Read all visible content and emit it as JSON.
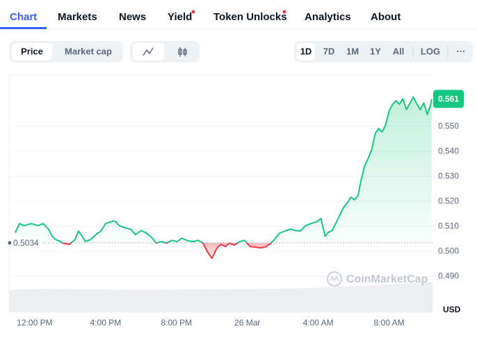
{
  "tabs": [
    "Chart",
    "Markets",
    "News",
    "Yield",
    "Token Unlocks",
    "Analytics",
    "About"
  ],
  "price_toggle": [
    "Price",
    "Market cap"
  ],
  "ranges": [
    "1D",
    "7D",
    "1M",
    "1Y",
    "All"
  ],
  "log": "LOG",
  "more": "···",
  "watermark": "CoinMarketCap",
  "chart_data": {
    "type": "line",
    "color": "#16c784",
    "negative_color": "#ea3943",
    "baseline": 0.5034,
    "current_price": 0.561,
    "y_label": "USD",
    "grid": true,
    "xlim": [
      -1.45,
      22.45
    ],
    "ylim": [
      0.4756,
      0.5706
    ],
    "xticks": [
      {
        "value": 0,
        "label": "12:00 PM"
      },
      {
        "value": 4,
        "label": "4:00 PM"
      },
      {
        "value": 8,
        "label": "8:00 PM"
      },
      {
        "value": 12,
        "label": "26 Mar"
      },
      {
        "value": 16,
        "label": "4:00 AM"
      },
      {
        "value": 20,
        "label": "8:00 AM"
      }
    ],
    "yticks": [
      {
        "value": 0.49,
        "label": "0.490"
      },
      {
        "value": 0.5,
        "label": "0.500"
      },
      {
        "value": 0.51,
        "label": "0.510"
      },
      {
        "value": 0.52,
        "label": "0.520"
      },
      {
        "value": 0.53,
        "label": "0.530"
      },
      {
        "value": 0.54,
        "label": "0.540"
      },
      {
        "value": 0.55,
        "label": "0.550"
      }
    ],
    "x": [
      -1.1,
      -0.86,
      -0.59,
      -0.2,
      0.2,
      0.47,
      0.78,
      0.98,
      1.18,
      1.37,
      1.57,
      1.96,
      2.27,
      2.47,
      2.67,
      2.86,
      3.14,
      3.45,
      3.73,
      4.0,
      4.24,
      4.51,
      4.78,
      5.1,
      5.41,
      5.69,
      6.0,
      6.27,
      6.59,
      6.86,
      7.14,
      7.45,
      7.76,
      8.04,
      8.31,
      8.63,
      8.94,
      9.22,
      9.49,
      9.73,
      10.0,
      10.27,
      10.51,
      10.78,
      10.98,
      11.25,
      11.57,
      11.84,
      12.16,
      12.43,
      12.75,
      13.02,
      13.25,
      13.53,
      13.8,
      14.12,
      14.43,
      14.71,
      14.98,
      15.29,
      15.57,
      15.88,
      16.16,
      16.39,
      16.55,
      16.78,
      17.06,
      17.25,
      17.45,
      17.65,
      17.84,
      18.04,
      18.24,
      18.43,
      18.63,
      18.82,
      19.02,
      19.22,
      19.41,
      19.61,
      19.8,
      20.0,
      20.2,
      20.39,
      20.59,
      20.78,
      20.98,
      21.18,
      21.37,
      21.57,
      21.76,
      21.96,
      22.16,
      22.35,
      22.4
    ],
    "values": [
      0.5075,
      0.5111,
      0.5103,
      0.5111,
      0.5103,
      0.5111,
      0.5089,
      0.5061,
      0.5047,
      0.5042,
      0.5033,
      0.5028,
      0.5047,
      0.5081,
      0.5061,
      0.5039,
      0.5047,
      0.5067,
      0.5081,
      0.5111,
      0.5117,
      0.5122,
      0.5103,
      0.5094,
      0.5089,
      0.5067,
      0.5083,
      0.5075,
      0.5056,
      0.5033,
      0.5039,
      0.5033,
      0.5044,
      0.5039,
      0.5053,
      0.5042,
      0.5039,
      0.5044,
      0.5033,
      0.5,
      0.4972,
      0.5011,
      0.5028,
      0.5019,
      0.5033,
      0.5025,
      0.5039,
      0.5044,
      0.5019,
      0.5017,
      0.5014,
      0.5017,
      0.5028,
      0.5047,
      0.5072,
      0.5081,
      0.5089,
      0.5083,
      0.5081,
      0.5103,
      0.5111,
      0.5117,
      0.5131,
      0.5061,
      0.5075,
      0.5083,
      0.5122,
      0.515,
      0.5178,
      0.5194,
      0.5217,
      0.5206,
      0.5222,
      0.5289,
      0.5344,
      0.5372,
      0.5408,
      0.5472,
      0.5492,
      0.5478,
      0.5506,
      0.5561,
      0.5589,
      0.5603,
      0.5589,
      0.5611,
      0.5567,
      0.5594,
      0.5617,
      0.5589,
      0.5567,
      0.5594,
      0.5547,
      0.5589,
      0.561
    ]
  }
}
